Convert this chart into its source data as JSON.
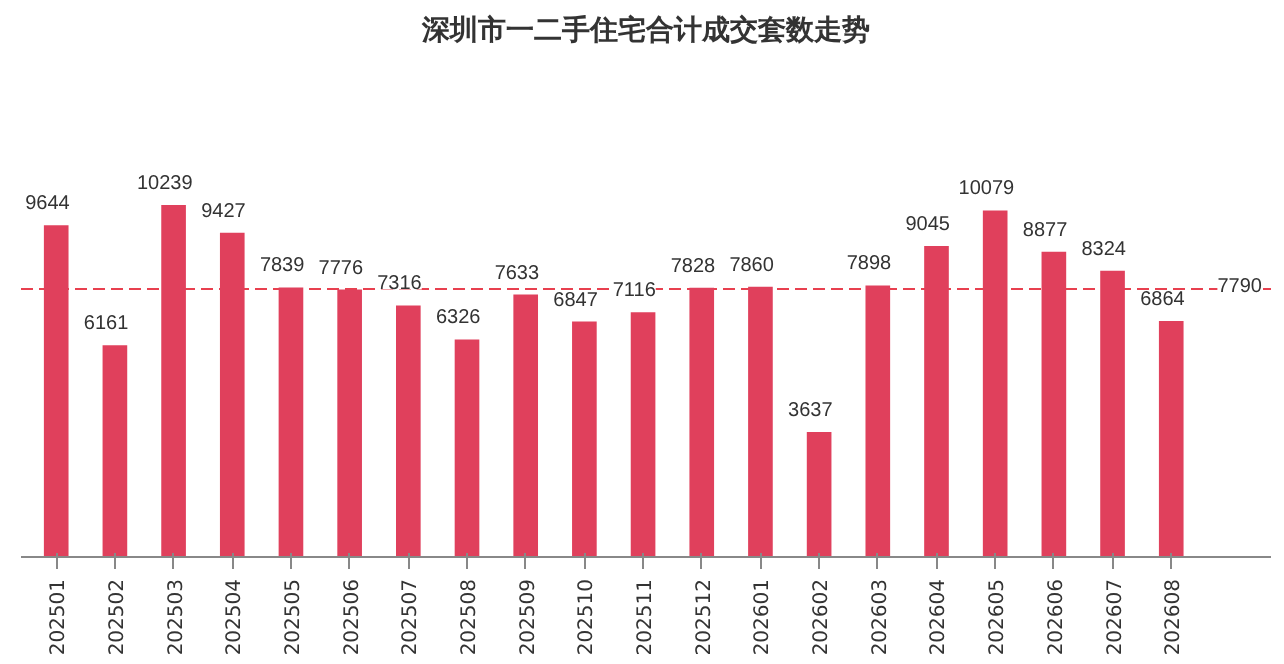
{
  "chart_data": {
    "type": "bar",
    "title": "深圳市一二手住宅合计成交套数走势",
    "categories": [
      "202501",
      "202502",
      "202503",
      "202504",
      "202505",
      "202506",
      "202507",
      "202508",
      "202509",
      "202510",
      "202511",
      "202512",
      "202601",
      "202602",
      "202603",
      "202604",
      "202605",
      "202606",
      "202607",
      "202608"
    ],
    "values": [
      9644,
      6161,
      10239,
      9427,
      7839,
      7776,
      7316,
      6326,
      7633,
      6847,
      7116,
      7828,
      7860,
      3637,
      7898,
      9045,
      10079,
      8877,
      8324,
      6864
    ],
    "color": "#e0405c",
    "data_labels": true,
    "grid": false,
    "ref_lines": [
      {
        "axis": "y",
        "value": 7790,
        "label": "7790",
        "color": "#e8404f",
        "line_style": "dashed"
      }
    ]
  }
}
